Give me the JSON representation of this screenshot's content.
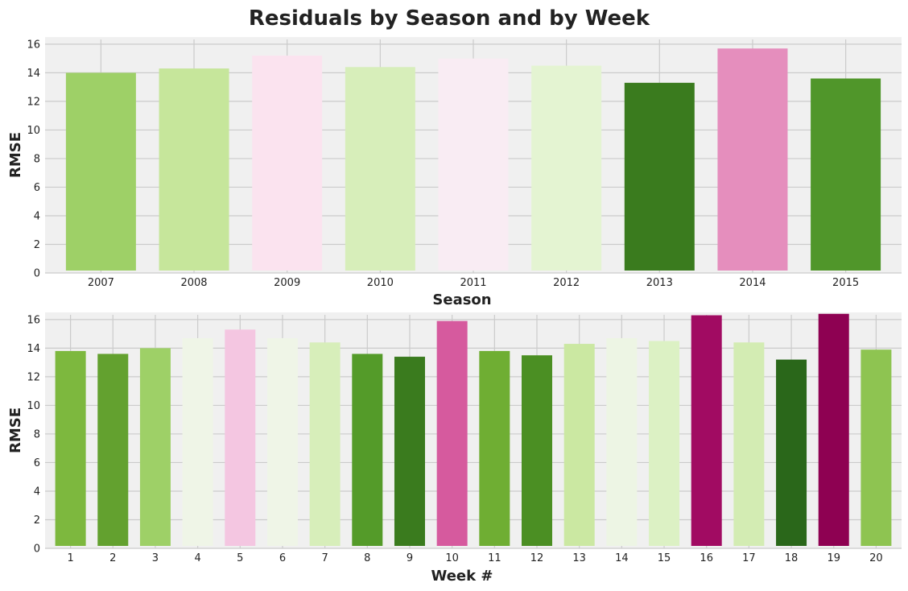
{
  "figure": {
    "title": "Residuals by Season and by Week",
    "background": "#ffffff",
    "plot_background": "#f0f0f0",
    "grid_color": "#cbcbcb",
    "style": "fivethirtyeight"
  },
  "chart_data": [
    {
      "type": "bar",
      "title": "",
      "xlabel": "Season",
      "ylabel": "RMSE",
      "ylim": [
        0,
        16.5
      ],
      "yticks": [
        0,
        2,
        4,
        6,
        8,
        10,
        12,
        14,
        16
      ],
      "grid": true,
      "categories": [
        "2007",
        "2008",
        "2009",
        "2010",
        "2011",
        "2012",
        "2013",
        "2014",
        "2015"
      ],
      "values": [
        14.0,
        14.3,
        15.2,
        14.4,
        15.0,
        14.5,
        13.3,
        15.7,
        13.6
      ],
      "colors": [
        "#9ed067",
        "#c6e69b",
        "#fbe3ef",
        "#d7eeba",
        "#f9ecf3",
        "#e4f4d2",
        "#3a7b1e",
        "#e58ebd",
        "#50962a"
      ]
    },
    {
      "type": "bar",
      "title": "",
      "xlabel": "Week #",
      "ylabel": "RMSE",
      "ylim": [
        0,
        16.5
      ],
      "yticks": [
        0,
        2,
        4,
        6,
        8,
        10,
        12,
        14,
        16
      ],
      "grid": true,
      "categories": [
        "1",
        "2",
        "3",
        "4",
        "5",
        "6",
        "7",
        "8",
        "9",
        "10",
        "11",
        "12",
        "13",
        "14",
        "15",
        "16",
        "17",
        "18",
        "19",
        "20"
      ],
      "values": [
        13.8,
        13.6,
        14.0,
        14.7,
        15.3,
        14.7,
        14.4,
        13.6,
        13.4,
        15.9,
        13.8,
        13.5,
        14.3,
        14.7,
        14.5,
        16.3,
        14.4,
        13.2,
        16.4,
        13.9
      ],
      "colors": [
        "#7db83e",
        "#63a12f",
        "#9ed067",
        "#eff5e7",
        "#f4c6e1",
        "#eff5e7",
        "#d7eeba",
        "#549b29",
        "#3a7b1e",
        "#d65a9e",
        "#6fae33",
        "#4b8f23",
        "#cbe8a2",
        "#edf5e4",
        "#dcf1c4",
        "#a10b62",
        "#d3ecb3",
        "#2a671a",
        "#8e0152",
        "#8ec451"
      ]
    }
  ]
}
